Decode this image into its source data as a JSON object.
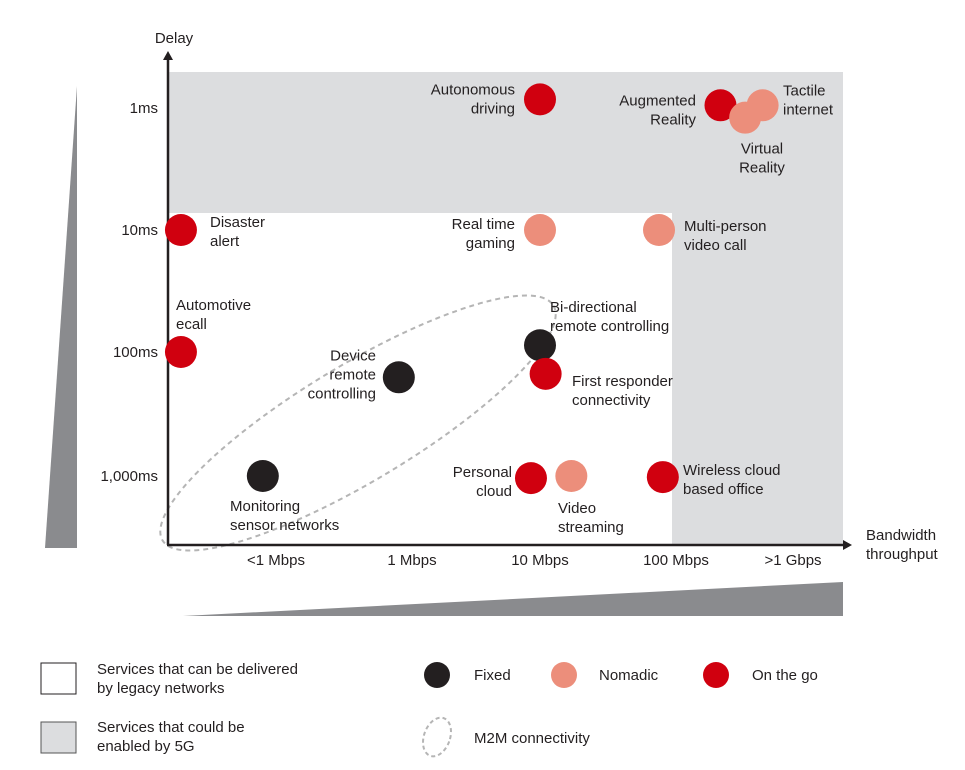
{
  "chart_data": {
    "type": "scatter",
    "ylabel": "Delay",
    "xlabel": "Bandwidth throughput",
    "x_scale": "log",
    "y_scale": "log",
    "x_ticks": [
      {
        "label": "<1 Mbps",
        "value": 0.1
      },
      {
        "label": "1 Mbps",
        "value": 1
      },
      {
        "label": "10 Mbps",
        "value": 10
      },
      {
        "label": "100 Mbps",
        "value": 100
      },
      {
        "label": ">1 Gbps",
        "value": 1000
      }
    ],
    "y_ticks": [
      {
        "label": "1ms",
        "value": 1
      },
      {
        "label": "10ms",
        "value": 10
      },
      {
        "label": "100ms",
        "value": 100
      },
      {
        "label": "1,000ms",
        "value": 1000
      }
    ],
    "colors": {
      "Fixed": "#231f20",
      "Nomadic": "#ec8e7b",
      "On the go": "#d0000f",
      "region_5g": "#dcdddf",
      "wedge": "#8a8b8e"
    },
    "points": [
      {
        "label": [
          "Autonomous",
          "driving"
        ],
        "category": "On the go",
        "x_mbps": 10,
        "y_ms": 0.85
      },
      {
        "label": [
          "Augmented",
          "Reality"
        ],
        "category": "On the go",
        "x_mbps": 240,
        "y_ms": 0.95
      },
      {
        "label": [
          "Tactile",
          "internet"
        ],
        "category": "Nomadic",
        "x_mbps": 550,
        "y_ms": 0.95
      },
      {
        "label": [
          "Virtual",
          "Reality"
        ],
        "category": "Nomadic",
        "x_mbps": 390,
        "y_ms": 1.2
      },
      {
        "label": [
          "Disaster",
          "alert"
        ],
        "category": "On the go",
        "x_mbps": 0.02,
        "y_ms": 10
      },
      {
        "label": [
          "Real time",
          "gaming"
        ],
        "category": "Nomadic",
        "x_mbps": 10,
        "y_ms": 10
      },
      {
        "label": [
          "Multi-person",
          "video call"
        ],
        "category": "Nomadic",
        "x_mbps": 75,
        "y_ms": 10
      },
      {
        "label": [
          "Automotive",
          "ecall"
        ],
        "category": "On the go",
        "x_mbps": 0.02,
        "y_ms": 100
      },
      {
        "label": [
          "Bi-directional",
          "remote controlling"
        ],
        "category": "Fixed",
        "x_mbps": 10,
        "y_ms": 88
      },
      {
        "label": [
          "Device",
          "remote",
          "controlling"
        ],
        "category": "Fixed",
        "x_mbps": 0.8,
        "y_ms": 160
      },
      {
        "label": [
          "First responder",
          "connectivity"
        ],
        "category": "On the go",
        "x_mbps": 11,
        "y_ms": 150
      },
      {
        "label": [
          "Monitoring",
          "sensor networks"
        ],
        "category": "Fixed",
        "x_mbps": 0.08,
        "y_ms": 1000
      },
      {
        "label": [
          "Personal",
          "cloud"
        ],
        "category": "On the go",
        "x_mbps": 8.5,
        "y_ms": 1040
      },
      {
        "label": [
          "Video",
          "streaming"
        ],
        "category": "Nomadic",
        "x_mbps": 17,
        "y_ms": 1000
      },
      {
        "label": [
          "Wireless cloud",
          "based office"
        ],
        "category": "On the go",
        "x_mbps": 80,
        "y_ms": 1020
      }
    ],
    "legend": {
      "regions": [
        {
          "label": [
            "Services that can be delivered",
            "by legacy networks"
          ]
        },
        {
          "label": [
            "Services that could be",
            "enabled by 5G"
          ]
        }
      ],
      "categories": [
        "Fixed",
        "Nomadic",
        "On the go"
      ],
      "m2m": "M2M connectivity"
    }
  }
}
